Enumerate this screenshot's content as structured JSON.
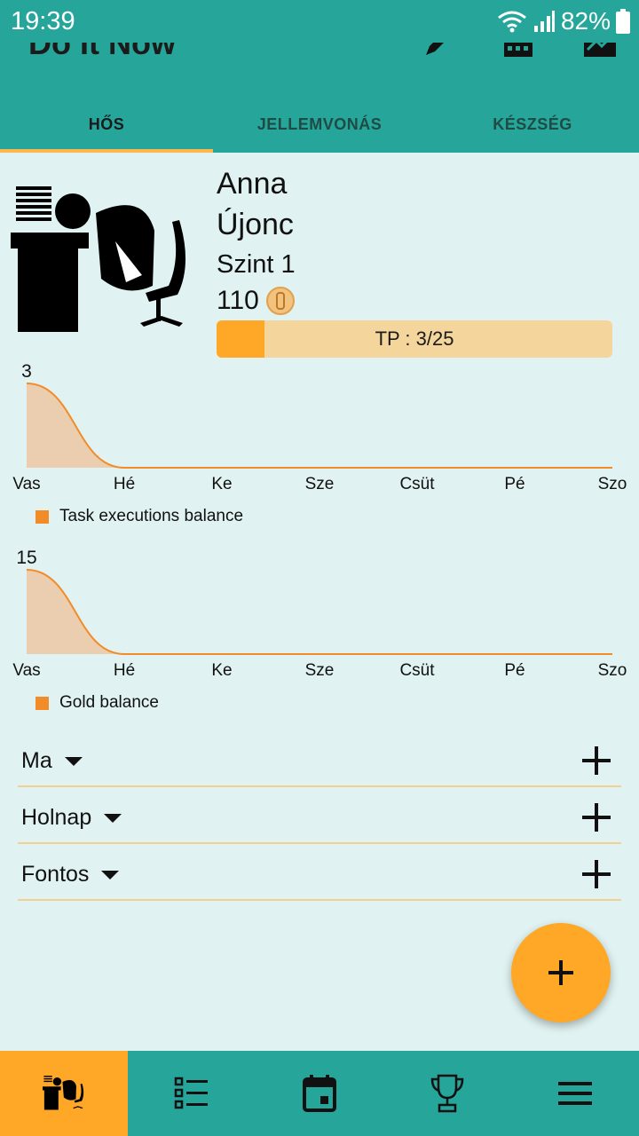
{
  "status": {
    "time": "19:39",
    "battery": "82%"
  },
  "app": {
    "title": "Do It Now"
  },
  "tabs": [
    {
      "label": "HŐS",
      "active": true
    },
    {
      "label": "JELLEMVONÁS",
      "active": false
    },
    {
      "label": "KÉSZSÉG",
      "active": false
    }
  ],
  "hero": {
    "name": "Anna",
    "rank": "Újonc",
    "level": "Szint 1",
    "gold": "110",
    "tp_label": "TP : 3/25",
    "tp_progress": 0.12
  },
  "chart_data": [
    {
      "type": "area",
      "categories": [
        "Vas",
        "Hé",
        "Ke",
        "Sze",
        "Csüt",
        "Pé",
        "Szo"
      ],
      "series": [
        {
          "name": "Task executions balance",
          "values": [
            3,
            0,
            0,
            0,
            0,
            0,
            0
          ]
        }
      ],
      "ymax_label": "3",
      "ylim": [
        0,
        3
      ],
      "color": "#f28c28"
    },
    {
      "type": "area",
      "categories": [
        "Vas",
        "Hé",
        "Ke",
        "Sze",
        "Csüt",
        "Pé",
        "Szo"
      ],
      "series": [
        {
          "name": "Gold balance",
          "values": [
            15,
            0,
            0,
            0,
            0,
            0,
            0
          ]
        }
      ],
      "ymax_label": "15",
      "ylim": [
        0,
        15
      ],
      "color": "#f28c28"
    }
  ],
  "sections": [
    {
      "label": "Ma"
    },
    {
      "label": "Holnap"
    },
    {
      "label": "Fontos"
    }
  ],
  "bottom_nav": [
    {
      "icon": "hero-icon",
      "active": true
    },
    {
      "icon": "task-list-icon",
      "active": false
    },
    {
      "icon": "calendar-icon",
      "active": false
    },
    {
      "icon": "trophy-icon",
      "active": false
    },
    {
      "icon": "menu-icon",
      "active": false
    }
  ]
}
